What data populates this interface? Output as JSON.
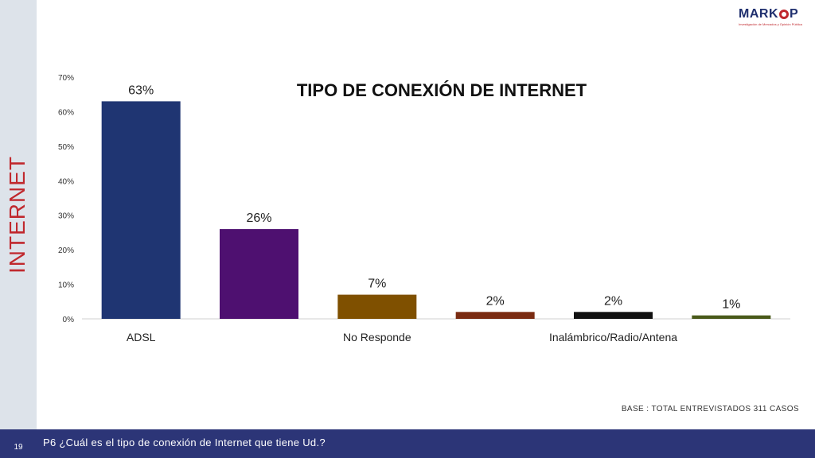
{
  "side_title": "INTERNET",
  "logo": {
    "name": "MARKOP",
    "tagline": "Investigación de Mercados y Opinión Pública"
  },
  "base_note": "BASE : TOTAL ENTREVISTADOS 311 CASOS",
  "page_number": "19",
  "question": "P6 ¿Cuál es el tipo de conexión de Internet que tiene Ud.?",
  "chart_data": {
    "type": "bar",
    "title": "TIPO DE CONEXIÓN DE INTERNET",
    "categories": [
      "ADSL",
      "",
      "No  Responde",
      "",
      "Inalámbrico/Radio/Antena",
      ""
    ],
    "values": [
      63,
      26,
      7,
      2,
      2,
      1
    ],
    "data_labels": [
      "63%",
      "26%",
      "7%",
      "2%",
      "2%",
      "1%"
    ],
    "colors": [
      "#1f3572",
      "#4e1070",
      "#7f5000",
      "#7a2b12",
      "#111111",
      "#4a5a1a"
    ],
    "ylim": [
      0,
      70
    ],
    "yticks": [
      0,
      10,
      20,
      30,
      40,
      50,
      60,
      70
    ],
    "ytick_labels": [
      "0%",
      "10%",
      "20%",
      "30%",
      "40%",
      "50%",
      "60%",
      "70%"
    ],
    "grid": false,
    "legend": "none"
  }
}
